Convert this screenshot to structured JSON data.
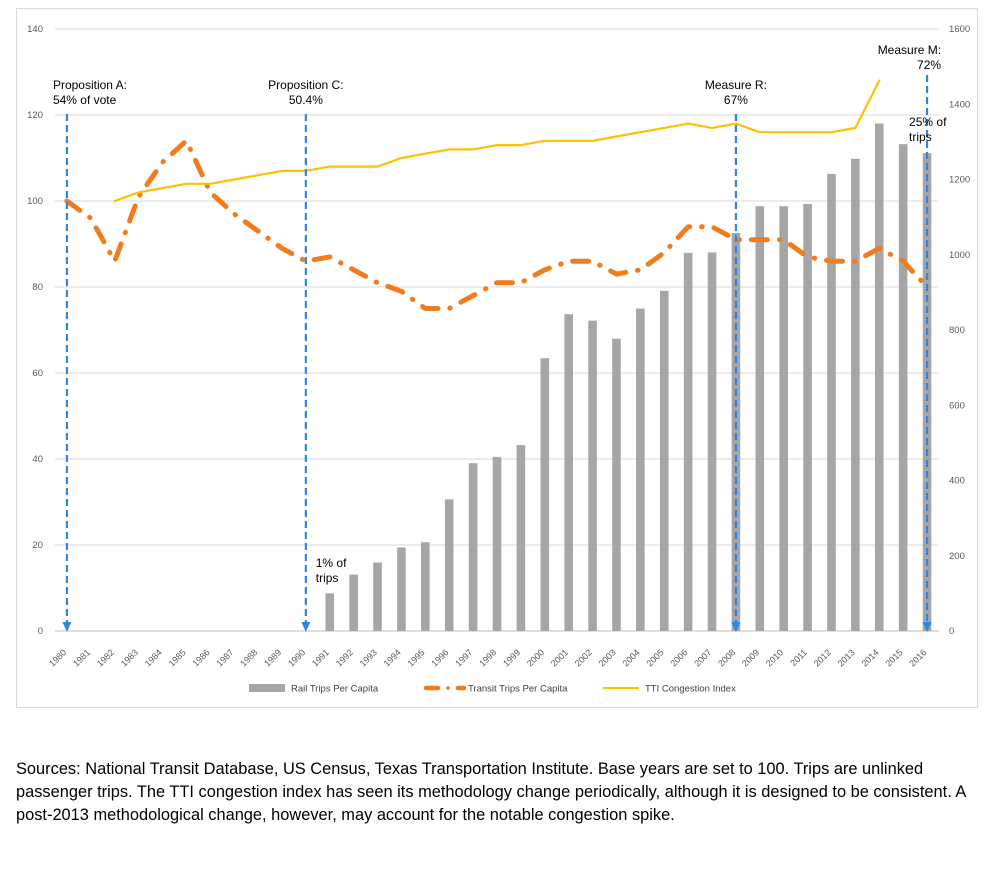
{
  "chart_data": {
    "type": "bar",
    "title": "",
    "xlabel": "",
    "ylabel": "",
    "y_left_lim": [
      0,
      140
    ],
    "y_left_ticks": [
      "0",
      "20",
      "40",
      "60",
      "80",
      "100",
      "120",
      "140"
    ],
    "y_right_lim": [
      0,
      1600
    ],
    "y_right_ticks": [
      "0",
      "200",
      "400",
      "600",
      "800",
      "1000",
      "1200",
      "1400",
      "1600"
    ],
    "grid": "horizontal",
    "legend_position": "bottom",
    "categories": [
      "1980",
      "1981",
      "1982",
      "1983",
      "1984",
      "1985",
      "1986",
      "1987",
      "1988",
      "1989",
      "1990",
      "1991",
      "1992",
      "1993",
      "1994",
      "1995",
      "1996",
      "1997",
      "1998",
      "1999",
      "2000",
      "2001",
      "2002",
      "2003",
      "2004",
      "2005",
      "2006",
      "2007",
      "2008",
      "2009",
      "2010",
      "2011",
      "2012",
      "2013",
      "2014",
      "2015",
      "2016"
    ],
    "series": [
      {
        "name": "Rail Trips Per Capita",
        "kind": "bar",
        "axis": "right",
        "color": "#a6a6a6",
        "values": [
          null,
          null,
          null,
          null,
          null,
          null,
          null,
          null,
          null,
          null,
          null,
          100,
          150,
          182,
          222,
          236,
          350,
          446,
          463,
          494,
          725,
          842,
          825,
          777,
          857,
          904,
          1005,
          1006,
          1058,
          1129,
          1129,
          1135,
          1215,
          1255,
          1349,
          1294,
          1270
        ]
      },
      {
        "name": "Transit Trips Per Capita",
        "kind": "line",
        "style": "dash-dot",
        "axis": "left",
        "color": "#f07c1e",
        "values": [
          100,
          96,
          86,
          101,
          109,
          114,
          102,
          97,
          93,
          89,
          86,
          87,
          84,
          81,
          79,
          75,
          75,
          78,
          81,
          81,
          84,
          86,
          86,
          83,
          84,
          88,
          94,
          94,
          91,
          91,
          91,
          87,
          86,
          86,
          89,
          86,
          80
        ]
      },
      {
        "name": "TTI Congestion Index",
        "kind": "line",
        "axis": "left",
        "color": "#ffc000",
        "values": [
          null,
          null,
          100,
          102,
          103,
          104,
          104,
          105,
          106,
          107,
          107,
          108,
          108,
          108,
          110,
          111,
          112,
          112,
          113,
          113,
          114,
          114,
          114,
          115,
          116,
          117,
          118,
          117,
          118,
          116,
          116,
          116,
          116,
          117,
          128,
          null,
          null
        ]
      }
    ],
    "annotations": [
      {
        "id": "prop-a",
        "year": "1980",
        "lines": [
          "Proposition A:",
          "54% of vote"
        ]
      },
      {
        "id": "prop-c",
        "year": "1990",
        "lines": [
          "Proposition C:",
          "50.4%"
        ]
      },
      {
        "id": "measure-r",
        "year": "2008",
        "lines": [
          "Measure R:",
          "67%"
        ]
      },
      {
        "id": "measure-m",
        "year": "2016",
        "lines": [
          "Measure M:",
          "72%"
        ]
      },
      {
        "id": "one-pct",
        "year": "1991",
        "lines": [
          "1% of",
          "trips"
        ]
      },
      {
        "id": "twentyfive-pct",
        "year": "2016",
        "lines": [
          "25% of",
          "trips"
        ]
      }
    ],
    "colors": {
      "arrow": "#2e86de",
      "grid": "#d9d9d9",
      "axis": "#bfbfbf"
    }
  },
  "sources_text": "Sources: National Transit Database, US Census, Texas Transportation Institute. Base years are set to 100. Trips are unlinked passenger trips.  The TTI congestion index has seen its methodology change periodically, although it is designed to be consistent. A post-2013 methodological change, however, may account for the notable congestion spike."
}
